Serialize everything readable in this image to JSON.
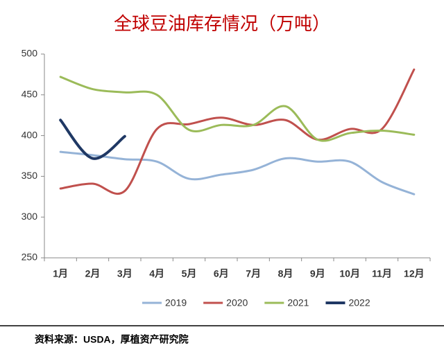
{
  "chart_data": {
    "type": "line",
    "title": "全球豆油库存情况（万吨）",
    "categories": [
      "1月",
      "2月",
      "3月",
      "4月",
      "5月",
      "6月",
      "7月",
      "8月",
      "9月",
      "10月",
      "11月",
      "12月"
    ],
    "series": [
      {
        "name": "2019",
        "color": "#95b3d7",
        "values": [
          380,
          376,
          371,
          368,
          347,
          352,
          358,
          372,
          368,
          368,
          343,
          328
        ]
      },
      {
        "name": "2020",
        "color": "#c0504d",
        "values": [
          335,
          341,
          332,
          408,
          414,
          422,
          413,
          419,
          395,
          408,
          408,
          481
        ]
      },
      {
        "name": "2021",
        "color": "#9bbb59",
        "values": [
          472,
          457,
          453,
          450,
          407,
          413,
          413,
          436,
          395,
          403,
          406,
          401
        ]
      },
      {
        "name": "2022",
        "color": "#1f3864",
        "values": [
          419,
          372,
          399,
          null,
          null,
          null,
          null,
          null,
          null,
          null,
          null,
          null
        ]
      }
    ],
    "ylim": [
      250,
      500
    ],
    "yticks": [
      250,
      300,
      350,
      400,
      450,
      500
    ],
    "grid": false,
    "legend": "bottom",
    "source": "资料来源：USDA，厚植资产研究院"
  }
}
